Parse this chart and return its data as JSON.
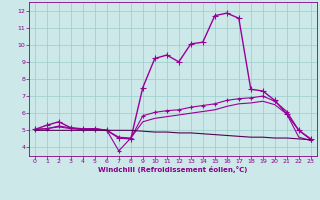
{
  "xlabel": "Windchill (Refroidissement éolien,°C)",
  "xlim": [
    -0.5,
    23.5
  ],
  "ylim": [
    3.5,
    12.5
  ],
  "yticks": [
    4,
    5,
    6,
    7,
    8,
    9,
    10,
    11,
    12
  ],
  "xticks": [
    0,
    1,
    2,
    3,
    4,
    5,
    6,
    7,
    8,
    9,
    10,
    11,
    12,
    13,
    14,
    15,
    16,
    17,
    18,
    19,
    20,
    21,
    22,
    23
  ],
  "bg_color": "#cce8e8",
  "line_color": "#880088",
  "grid_color": "#99cccc",
  "lines": [
    {
      "x": [
        0,
        1,
        2,
        3,
        4,
        5,
        6,
        7,
        8,
        9,
        10,
        11,
        12,
        13,
        14,
        15,
        16,
        17,
        18,
        19,
        20,
        21,
        22,
        23
      ],
      "y": [
        5.05,
        5.3,
        5.5,
        5.15,
        5.05,
        5.1,
        5.0,
        4.55,
        4.5,
        7.5,
        9.2,
        9.4,
        9.0,
        10.05,
        10.15,
        11.7,
        11.85,
        11.55,
        7.4,
        7.3,
        6.75,
        5.95,
        5.0,
        4.5
      ],
      "marker": "+",
      "markersize": 4,
      "linewidth": 1.0,
      "color": "#990099"
    },
    {
      "x": [
        0,
        1,
        2,
        3,
        4,
        5,
        6,
        7,
        8,
        9,
        10,
        11,
        12,
        13,
        14,
        15,
        16,
        17,
        18,
        19,
        20,
        21,
        22,
        23
      ],
      "y": [
        5.05,
        5.1,
        5.25,
        5.15,
        5.1,
        5.1,
        5.0,
        3.8,
        4.55,
        5.85,
        6.05,
        6.15,
        6.2,
        6.35,
        6.45,
        6.55,
        6.75,
        6.85,
        6.9,
        7.0,
        6.7,
        6.1,
        5.0,
        4.45
      ],
      "marker": "+",
      "markersize": 3,
      "linewidth": 0.8,
      "color": "#990099"
    },
    {
      "x": [
        0,
        1,
        2,
        3,
        4,
        5,
        6,
        7,
        8,
        9,
        10,
        11,
        12,
        13,
        14,
        15,
        16,
        17,
        18,
        19,
        20,
        21,
        22,
        23
      ],
      "y": [
        5.05,
        5.1,
        5.2,
        5.1,
        5.05,
        5.05,
        5.0,
        4.6,
        4.55,
        5.5,
        5.7,
        5.8,
        5.9,
        6.0,
        6.1,
        6.2,
        6.4,
        6.55,
        6.6,
        6.7,
        6.5,
        5.95,
        4.6,
        4.4
      ],
      "marker": null,
      "markersize": 0,
      "linewidth": 0.8,
      "color": "#990099"
    },
    {
      "x": [
        0,
        1,
        2,
        3,
        4,
        5,
        6,
        7,
        8,
        9,
        10,
        11,
        12,
        13,
        14,
        15,
        16,
        17,
        18,
        19,
        20,
        21,
        22,
        23
      ],
      "y": [
        5.0,
        5.0,
        5.0,
        5.0,
        5.0,
        5.0,
        5.0,
        5.0,
        5.0,
        4.95,
        4.9,
        4.9,
        4.85,
        4.85,
        4.8,
        4.75,
        4.7,
        4.65,
        4.6,
        4.6,
        4.55,
        4.55,
        4.5,
        4.45
      ],
      "marker": null,
      "markersize": 0,
      "linewidth": 0.8,
      "color": "#550055"
    }
  ]
}
